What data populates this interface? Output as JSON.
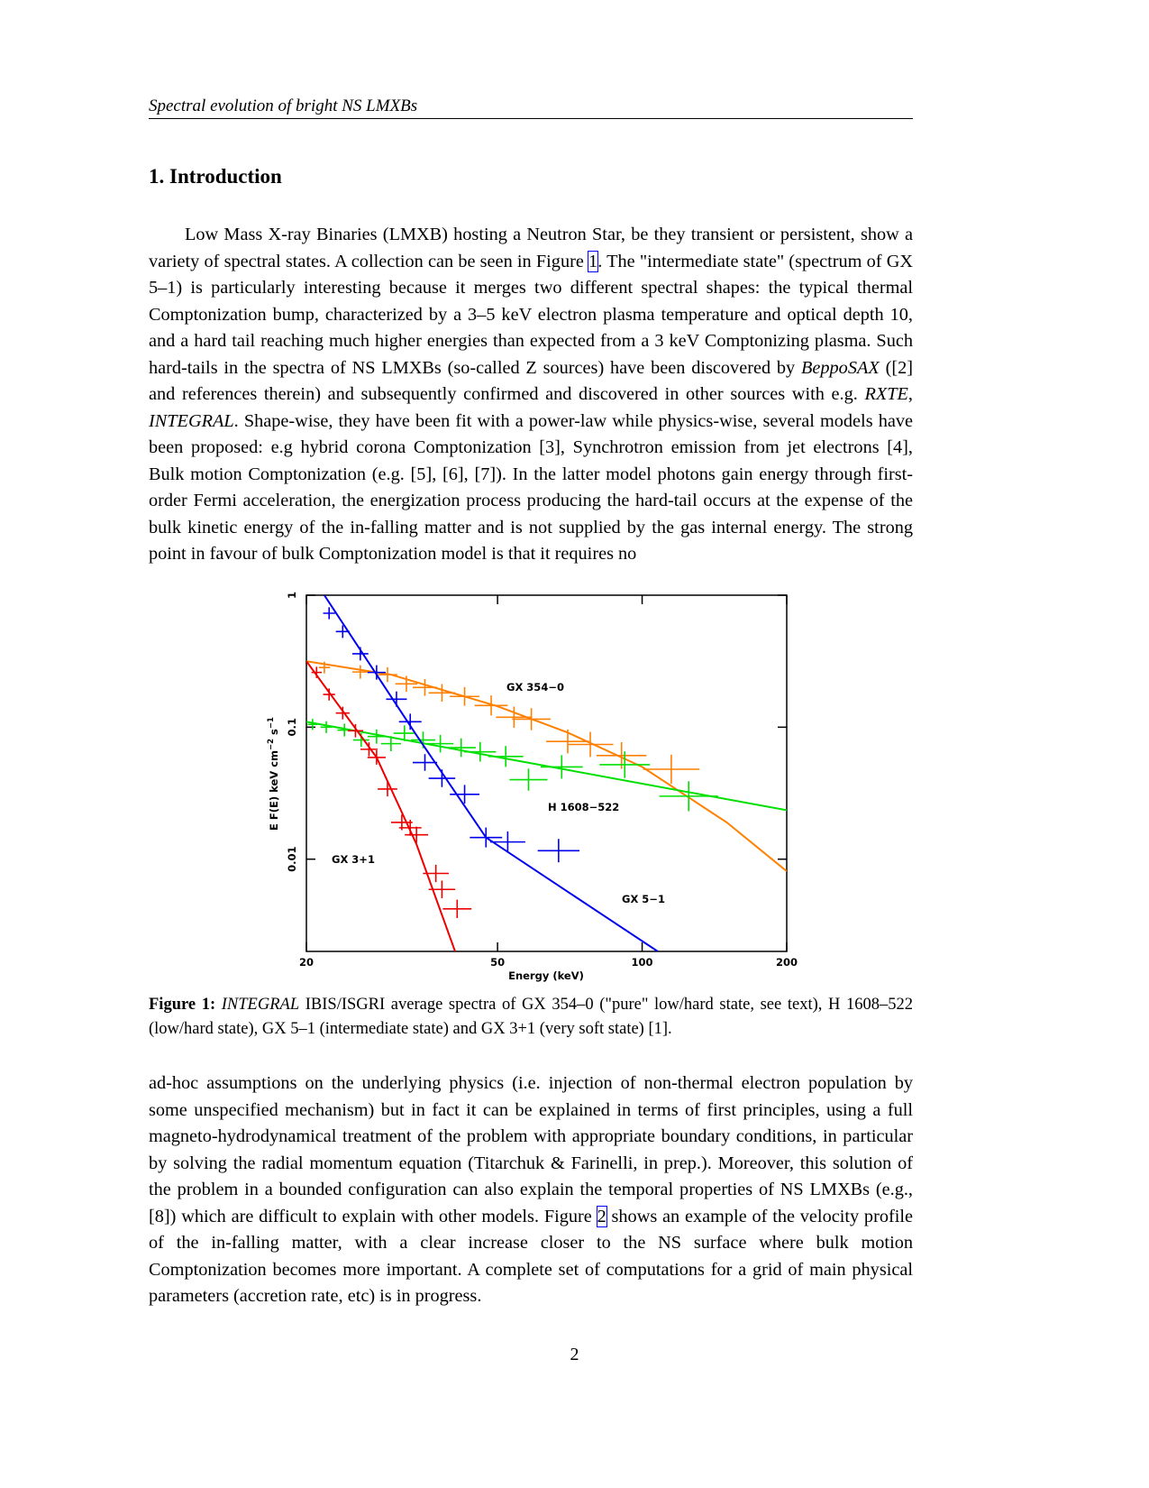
{
  "header": "Spectral evolution of bright NS LMXBs",
  "section": "1. Introduction",
  "paragraph1": [
    "Low Mass X-ray Binaries (LMXB) hosting a Neutron Star, be they transient or persistent, show a variety of spectral states. A collection can be seen in Figure ",
    "1",
    ". The \"intermediate state\" (spectrum of GX 5–1) is particularly interesting because it merges two different spectral shapes: the typical thermal Comptonization bump, characterized by a 3–5 keV electron plasma temperature and optical depth  10, and a hard tail reaching much higher energies than expected from a 3 keV Comptonizing plasma. Such hard-tails in the spectra of NS LMXBs (so-called Z sources) have been discovered by ",
    "BeppoSAX",
    " ([2] and references therein) and subsequently confirmed and discovered in other sources with e.g. ",
    "RXTE",
    ", ",
    "INTEGRAL",
    ". Shape-wise, they have been fit with a power-law while physics-wise, several models have been proposed: e.g hybrid corona Comptonization [3], Synchrotron emission from jet electrons [4], Bulk motion Comptonization (e.g. [5], [6], [7]). In the latter model photons gain energy through first-order Fermi acceleration, the energization process producing the hard-tail occurs at the expense of the bulk kinetic energy of the in-falling matter and is not supplied by the gas internal energy. The strong point in favour of bulk Comptonization model is that it requires no"
  ],
  "caption": [
    "Figure 1:",
    "INTEGRAL",
    " IBIS/ISGRI average spectra of GX 354–0 (\"pure\" low/hard state, see text), H 1608–522 (low/hard state), GX 5–1 (intermediate state) and GX 3+1 (very soft state) [1]."
  ],
  "paragraph2": [
    "ad-hoc assumptions on the underlying physics (i.e. injection of non-thermal electron population by some unspecified mechanism) but in fact it can be explained in terms of first principles, using a full magneto-hydrodynamical treatment of the problem with appropriate boundary conditions, in particular by solving the radial momentum equation (Titarchuk & Farinelli, in prep.). Moreover, this solution of the problem in a bounded configuration can also explain the temporal properties of NS LMXBs (e.g., [8]) which are difficult to explain with other models. Figure ",
    "2",
    " shows an example of the velocity profile of the in-falling matter, with a clear increase closer to the NS surface where bulk motion Comptonization becomes more important. A complete set of computations for a grid of main physical parameters (accretion rate, etc) is in progress."
  ],
  "page_number": "2",
  "chart_data": {
    "type": "scatter",
    "xlabel": "Energy (keV)",
    "ylabel": [
      "E F(E) keV cm",
      "−2",
      " s",
      "−1"
    ],
    "xscale": "log",
    "yscale": "log",
    "xlim": [
      20,
      200
    ],
    "ylim": [
      0.002,
      1
    ],
    "xticks": [
      20,
      50,
      100,
      200
    ],
    "yticks": [
      0.01,
      0.1,
      1
    ],
    "series": [
      {
        "name": "GX 354−0",
        "color": "#ff8000",
        "x": [
          21.8,
          25.9,
          29.5,
          32.3,
          35.3,
          38.3,
          42.7,
          48.5,
          54.1,
          58.8,
          70,
          78,
          90.6,
          115
        ],
        "values": [
          0.283,
          0.262,
          0.25,
          0.213,
          0.2,
          0.182,
          0.171,
          0.146,
          0.119,
          0.115,
          0.078,
          0.074,
          0.061,
          0.048
        ],
        "model_x": [
          20,
          30,
          50,
          70,
          100,
          150,
          200
        ],
        "model_values": [
          0.316,
          0.25,
          0.144,
          0.091,
          0.05,
          0.019,
          0.0081
        ]
      },
      {
        "name": "H 1608−522",
        "color": "#00e000",
        "x": [
          20.6,
          22,
          24,
          26,
          28,
          30,
          32,
          35,
          38,
          42,
          46,
          52,
          58,
          68,
          92,
          125
        ],
        "values": [
          0.105,
          0.1,
          0.095,
          0.08,
          0.085,
          0.075,
          0.09,
          0.08,
          0.075,
          0.07,
          0.065,
          0.06,
          0.04,
          0.05,
          0.052,
          0.03
        ],
        "model_x": [
          20,
          50,
          200
        ],
        "model_values": [
          0.11,
          0.0594,
          0.0235
        ]
      },
      {
        "name": "GX 5−1",
        "color": "#0000ee",
        "x": [
          22.3,
          23.8,
          25.9,
          28,
          30.8,
          32.9,
          35.3,
          38.3,
          42.7,
          47.3,
          52.5,
          67
        ],
        "values": [
          0.73,
          0.53,
          0.36,
          0.26,
          0.163,
          0.11,
          0.054,
          0.041,
          0.031,
          0.0146,
          0.0135,
          0.0116
        ],
        "model_x": [
          21.8,
          33.9,
          47.3,
          107.8
        ],
        "model_values": [
          1,
          0.087,
          0.0146,
          0.002
        ]
      },
      {
        "name": "GX 3+1",
        "color": "#ee0000",
        "x": [
          21,
          22.3,
          23.8,
          25.3,
          27,
          28,
          29.5,
          31.6,
          32.9,
          33.9,
          37.2,
          38.3,
          41.2
        ],
        "values": [
          0.26,
          0.177,
          0.128,
          0.094,
          0.068,
          0.059,
          0.034,
          0.019,
          0.0173,
          0.0153,
          0.0078,
          0.0059,
          0.0042
        ],
        "model_x": [
          20,
          28,
          33.9,
          40.8
        ],
        "model_values": [
          0.316,
          0.059,
          0.013,
          0.002
        ]
      }
    ]
  }
}
